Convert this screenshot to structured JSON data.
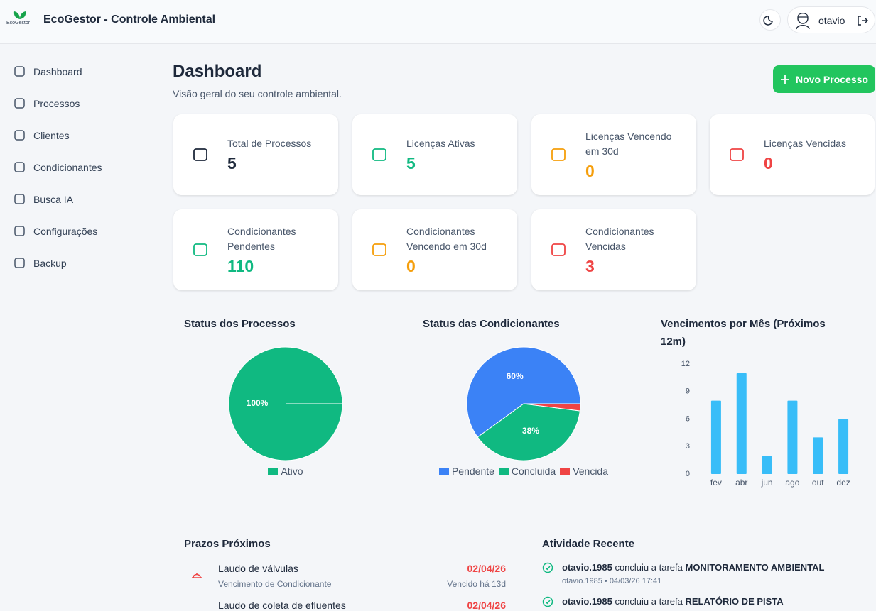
{
  "header": {
    "logo": "EcoGestor",
    "title": "EcoGestor - Controle Ambiental",
    "user": "otavio"
  },
  "sidebar": [
    "Dashboard",
    "Processos",
    "Clientes",
    "Condicionantes",
    "Busca IA",
    "Configurações",
    "Backup"
  ],
  "page": {
    "title": "Dashboard",
    "subtitle": "Visão geral do seu controle ambiental.",
    "button": "Novo Processo"
  },
  "cards": [
    {
      "label": "Total de Processos",
      "value": 5,
      "color": "#1e293b"
    },
    {
      "label": "Licenças Ativas",
      "value": 5,
      "color": "#10b981"
    },
    {
      "label": "Licenças Vencendo em 30d",
      "value": 0,
      "color": "#f59e0b"
    },
    {
      "label": "Licenças Vencidas",
      "value": 0,
      "color": "#ef4444"
    },
    {
      "label": "Condicionantes Pendentes",
      "value": 110,
      "color": "#10b981"
    },
    {
      "label": "Condicionantes Vencendo em 30d",
      "value": 0,
      "color": "#f59e0b"
    },
    {
      "label": "Condicionantes Vencidas",
      "value": 3,
      "color": "#ef4444"
    }
  ],
  "chart_data": [
    {
      "type": "pie",
      "title": "Status dos Processos",
      "categories": [
        "Ativo"
      ],
      "values": [
        100
      ],
      "value_labels": [
        "100%"
      ],
      "colors": [
        "#10b981"
      ]
    },
    {
      "type": "pie",
      "title": "Status das Condicionantes",
      "categories": [
        "Pendente",
        "Concluida",
        "Vencida"
      ],
      "values": [
        60,
        38,
        2
      ],
      "value_labels": [
        "60%",
        "38%",
        null
      ],
      "colors": [
        "#3b82f6",
        "#10b981",
        "#ef4444"
      ]
    },
    {
      "type": "bar",
      "title": "Vencimentos por Mês (Próximos 12m)",
      "categories": [
        "fev",
        "abr",
        "jun",
        "ago",
        "out",
        "dez"
      ],
      "values": [
        8,
        11,
        2,
        8,
        4,
        6
      ],
      "color": "#38bdf8",
      "ylim": [
        0,
        12
      ],
      "yticks": [
        0,
        3,
        6,
        9,
        12
      ]
    }
  ],
  "deadlines": {
    "title": "Prazos Próximos",
    "items": [
      {
        "name": "Laudo de válvulas",
        "detail": "Vencimento de Condicionante",
        "date": "02/04/26",
        "status": "Vencido há 13d"
      },
      {
        "name": "Laudo de coleta de efluentes",
        "date": "02/04/26"
      }
    ]
  },
  "activity": {
    "title": "Atividade Recente",
    "items": [
      {
        "user": "otavio.1985",
        "action": "concluiu a tarefa",
        "task": "MONITORAMENTO AMBIENTAL",
        "meta": "otavio.1985 • 04/03/26 17:41"
      },
      {
        "user": "otavio.1985",
        "action": "concluiu a tarefa",
        "task": "RELATÓRIO DE PISTA"
      }
    ]
  }
}
